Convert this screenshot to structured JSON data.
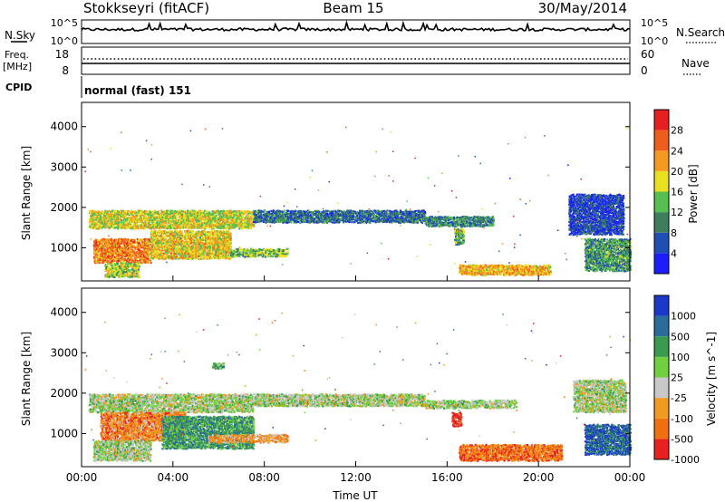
{
  "header": {
    "title": "Stokkseyri (fitACF)",
    "beam": "Beam 15",
    "date": "30/May/2014"
  },
  "top_panels": {
    "nsky_label": "N.Sky",
    "nsky_tick_top": "10^5",
    "nsky_tick_bottom": "10^0",
    "nsearch_label": "N.Search",
    "nsearch_tick_top": "10^5",
    "nsearch_tick_bottom": "10^0",
    "freq_label": "Freq.",
    "freq_unit": "[MHz]",
    "freq_tick_top": "18",
    "freq_tick_bottom": "8",
    "nave_label": "Nave",
    "nave_tick_top": "60",
    "nave_tick_bottom": "0",
    "cpid_label": "CPID",
    "cpid_value": "normal (fast) 151"
  },
  "chart_data": [
    {
      "type": "heatmap",
      "name": "power",
      "ylabel": "Slant Range [km]",
      "yticks": [
        "1000",
        "2000",
        "3000",
        "4000"
      ],
      "ylim": [
        180,
        4600
      ],
      "xlim": [
        0,
        24
      ],
      "colorbar_label": "Power [dB]",
      "colorbar_ticks": [
        "4",
        "8",
        "12",
        "16",
        "20",
        "24",
        "28"
      ],
      "colors": [
        "#1c1cff",
        "#1f4fb4",
        "#3e7e5e",
        "#55bf4f",
        "#e8e020",
        "#f59a20",
        "#ee5d1a",
        "#e62020"
      ],
      "scatter_regions": [
        {
          "t0": 0.3,
          "t1": 7.5,
          "r0": 1450,
          "r1": 1900,
          "level": 0.55
        },
        {
          "t0": 7.5,
          "t1": 15.0,
          "r0": 1600,
          "r1": 1900,
          "level": 0.25
        },
        {
          "t0": 15.0,
          "t1": 18.0,
          "r0": 1500,
          "r1": 1750,
          "level": 0.3
        },
        {
          "t0": 0.5,
          "t1": 3.0,
          "r0": 600,
          "r1": 1200,
          "level": 0.75
        },
        {
          "t0": 3.0,
          "t1": 6.5,
          "r0": 700,
          "r1": 1400,
          "level": 0.6
        },
        {
          "t0": 6.5,
          "t1": 9.0,
          "r0": 750,
          "r1": 950,
          "level": 0.45
        },
        {
          "t0": 1.0,
          "t1": 2.5,
          "r0": 250,
          "r1": 600,
          "level": 0.5
        },
        {
          "t0": 16.3,
          "t1": 16.7,
          "r0": 1050,
          "r1": 1450,
          "level": 0.4
        },
        {
          "t0": 16.5,
          "t1": 20.5,
          "r0": 300,
          "r1": 550,
          "level": 0.65
        },
        {
          "t0": 21.3,
          "t1": 23.7,
          "r0": 1300,
          "r1": 2300,
          "level": 0.15
        },
        {
          "t0": 22.0,
          "t1": 24.0,
          "r0": 400,
          "r1": 1200,
          "level": 0.35
        }
      ]
    },
    {
      "type": "heatmap",
      "name": "velocity",
      "xlabel": "Time UT",
      "xticks": [
        "00:00",
        "04:00",
        "08:00",
        "12:00",
        "16:00",
        "20:00",
        "00:00"
      ],
      "xlim": [
        0,
        24
      ],
      "ylabel": "Slant Range [km]",
      "yticks": [
        "1000",
        "2000",
        "3000",
        "4000"
      ],
      "ylim": [
        180,
        4600
      ],
      "colorbar_label": "Velocity [m s^-1]",
      "colorbar_ticks": [
        "1000",
        "500",
        "100",
        "25",
        "-25",
        "-100",
        "-500",
        "-1000"
      ],
      "colors": [
        "#1c38c8",
        "#2a6c9a",
        "#3a9a50",
        "#70d040",
        "#c8c8c8",
        "#f09a20",
        "#f07010",
        "#e82020"
      ],
      "scatter_regions": [
        {
          "t0": 0.3,
          "t1": 7.5,
          "r0": 1500,
          "r1": 1950,
          "level": 0.5
        },
        {
          "t0": 7.5,
          "t1": 15.0,
          "r0": 1650,
          "r1": 1950,
          "level": 0.5
        },
        {
          "t0": 15.0,
          "t1": 19.0,
          "r0": 1600,
          "r1": 1800,
          "level": 0.5
        },
        {
          "t0": 0.8,
          "t1": 4.5,
          "r0": 800,
          "r1": 1500,
          "level": 0.75
        },
        {
          "t0": 3.5,
          "t1": 7.5,
          "r0": 600,
          "r1": 1400,
          "level": 0.3
        },
        {
          "t0": 5.5,
          "t1": 9.0,
          "r0": 750,
          "r1": 950,
          "level": 0.7
        },
        {
          "t0": 0.5,
          "t1": 3.0,
          "r0": 300,
          "r1": 800,
          "level": 0.5
        },
        {
          "t0": 16.2,
          "t1": 16.6,
          "r0": 1150,
          "r1": 1500,
          "level": 1.0
        },
        {
          "t0": 16.5,
          "t1": 21.0,
          "r0": 300,
          "r1": 700,
          "level": 0.8
        },
        {
          "t0": 21.5,
          "t1": 23.8,
          "r0": 1500,
          "r1": 2300,
          "level": 0.5
        },
        {
          "t0": 22.0,
          "t1": 24.0,
          "r0": 450,
          "r1": 1200,
          "level": 0.15
        },
        {
          "t0": 5.7,
          "t1": 6.2,
          "r0": 2580,
          "r1": 2720,
          "level": 0.35
        }
      ]
    }
  ]
}
